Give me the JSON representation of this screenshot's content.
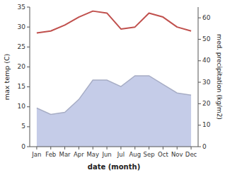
{
  "chart_data": {
    "type": "line",
    "xlabel": "date (month)",
    "ylabel": "max temp (C)",
    "y2label": "med. precipitation (kg/m2)",
    "categories": [
      "Jan",
      "Feb",
      "Mar",
      "Apr",
      "May",
      "Jun",
      "Jul",
      "Aug",
      "Sep",
      "Oct",
      "Nov",
      "Dec"
    ],
    "series": [
      {
        "type": "area",
        "axis": "y2",
        "color": "#c5cce8",
        "values": [
          18,
          15,
          16,
          22,
          31,
          31,
          28,
          33,
          33,
          29,
          25,
          24
        ]
      },
      {
        "type": "line",
        "color": "#c0504d",
        "values": [
          28.5,
          29.0,
          30.5,
          32.5,
          34.0,
          33.5,
          29.5,
          30.0,
          33.5,
          32.5,
          30.0,
          29.0
        ]
      }
    ],
    "ylim": [
      0,
      35
    ],
    "yticks": [
      0,
      5,
      10,
      15,
      20,
      25,
      30,
      35
    ],
    "y2lim": [
      0,
      65
    ],
    "y2ticks": [
      0,
      10,
      20,
      30,
      40,
      50,
      60
    ],
    "grid": false
  }
}
